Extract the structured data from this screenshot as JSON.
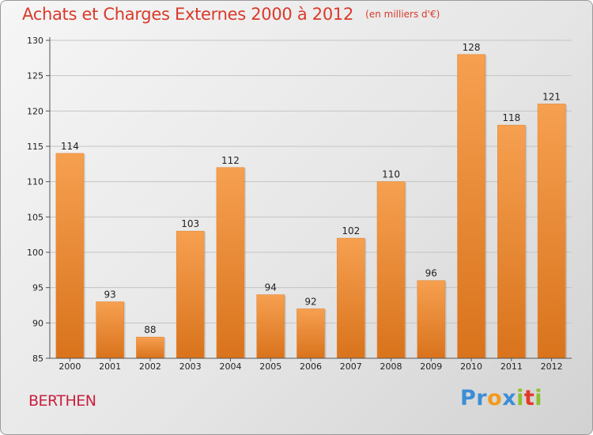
{
  "chart_data": {
    "type": "bar",
    "title": "Achats et Charges Externes 2000 à 2012",
    "subtitle": "(en milliers d'€)",
    "categories": [
      "2000",
      "2001",
      "2002",
      "2003",
      "2004",
      "2005",
      "2006",
      "2007",
      "2008",
      "2009",
      "2010",
      "2011",
      "2012"
    ],
    "values": [
      114,
      93,
      88,
      103,
      112,
      94,
      92,
      102,
      110,
      96,
      128,
      118,
      121
    ],
    "ylim": [
      85,
      130
    ],
    "yticks": [
      85,
      90,
      95,
      100,
      105,
      110,
      115,
      120,
      125,
      130
    ],
    "grid": "horizontal",
    "bar_color_top": "#f6a050",
    "bar_color_bottom": "#d9731c",
    "xlabel": "",
    "ylabel": ""
  },
  "footer": {
    "place": "BERTHEN",
    "logo_letters": [
      {
        "ch": "P",
        "color": "#3b8ed6"
      },
      {
        "ch": "r",
        "color": "#3b8ed6"
      },
      {
        "ch": "o",
        "color": "#f39a1e"
      },
      {
        "ch": "x",
        "color": "#3b8ed6"
      },
      {
        "ch": "i",
        "color": "#8fbf2f"
      },
      {
        "ch": "t",
        "color": "#e23a2a"
      },
      {
        "ch": "i",
        "color": "#8fbf2f"
      }
    ]
  }
}
